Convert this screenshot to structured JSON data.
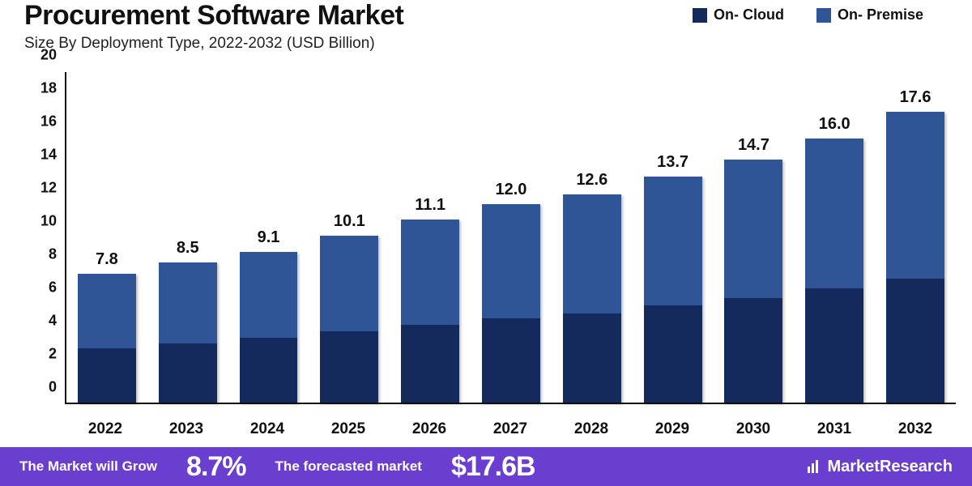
{
  "title": "Procurement Software Market",
  "subtitle": "Size By Deployment Type, 2022-2032 (USD Billion)",
  "legend": [
    {
      "label": "On- Cloud",
      "color": "#142a5c"
    },
    {
      "label": "On- Premise",
      "color": "#2f5597"
    }
  ],
  "chart": {
    "type": "stacked-bar",
    "ylim": [
      0,
      20
    ],
    "ytick_step": 2,
    "yticks": [
      0,
      2,
      4,
      6,
      8,
      10,
      12,
      14,
      16,
      18,
      20
    ],
    "categories": [
      "2022",
      "2023",
      "2024",
      "2025",
      "2026",
      "2027",
      "2028",
      "2029",
      "2030",
      "2031",
      "2032"
    ],
    "totals": [
      "7.8",
      "8.5",
      "9.1",
      "10.1",
      "11.1",
      "12.0",
      "12.6",
      "13.7",
      "14.7",
      "16.0",
      "17.6"
    ],
    "series": {
      "on_cloud": {
        "color": "#142a5c",
        "values": [
          3.3,
          3.6,
          3.9,
          4.3,
          4.7,
          5.1,
          5.4,
          5.9,
          6.3,
          6.9,
          7.5
        ]
      },
      "on_premise": {
        "color": "#2f5597",
        "values": [
          4.5,
          4.9,
          5.2,
          5.8,
          6.4,
          6.9,
          7.2,
          7.8,
          8.4,
          9.1,
          10.1
        ]
      }
    },
    "bar_width_pct": 72,
    "axis_color": "#111111",
    "background_color": "#ffffff",
    "label_fontsize": 20,
    "tick_fontsize": 18,
    "tick_fontweight": 700
  },
  "footer": {
    "bg_color": "#6a3fcf",
    "text1": "The Market will Grow",
    "big1": "8.7%",
    "text2": "The forecasted market",
    "big2": "$17.6B",
    "brand": "MarketResearch"
  }
}
